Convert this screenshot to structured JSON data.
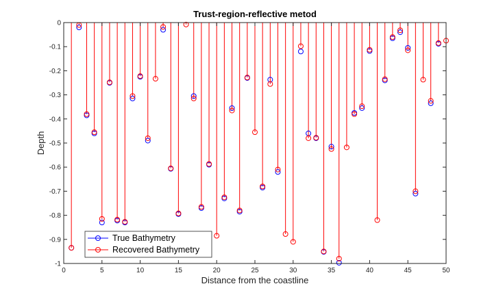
{
  "chart_data": {
    "type": "stem",
    "title": "Trust-region-reflective metod",
    "xlabel": "Distance from the coastline",
    "ylabel": "Depth",
    "xlim": [
      0,
      50
    ],
    "ylim": [
      -1,
      0
    ],
    "xticks": [
      0,
      5,
      10,
      15,
      20,
      25,
      30,
      35,
      40,
      45,
      50
    ],
    "yticks": [
      0,
      -0.1,
      -0.2,
      -0.3,
      -0.4,
      -0.5,
      -0.6,
      -0.7,
      -0.8,
      -0.9,
      -1
    ],
    "ytick_labels": [
      "0",
      "-0.1",
      "-0.2",
      "-0.3",
      "-0.4",
      "-0.5",
      "-0.6",
      "-0.7",
      "-0.8",
      "-0.9",
      "-1"
    ],
    "grid": false,
    "legend_position": "bottom-left",
    "x": [
      1,
      2,
      3,
      4,
      5,
      6,
      7,
      8,
      9,
      10,
      11,
      12,
      13,
      14,
      15,
      16,
      17,
      18,
      19,
      20,
      21,
      22,
      23,
      24,
      25,
      26,
      27,
      28,
      29,
      30,
      31,
      32,
      33,
      34,
      35,
      36,
      37,
      38,
      39,
      40,
      41,
      42,
      43,
      44,
      45,
      46,
      47,
      48,
      49,
      50
    ],
    "series": [
      {
        "name": "True Bathymetry",
        "color": "#0000ff",
        "marker": "circle",
        "stems": false,
        "values": [
          -0.935,
          -0.02,
          -0.385,
          -0.46,
          -0.83,
          -0.25,
          -0.822,
          -0.83,
          -0.315,
          -0.225,
          -0.49,
          null,
          -0.03,
          -0.607,
          -0.795,
          null,
          -0.305,
          -0.77,
          -0.59,
          null,
          -0.73,
          -0.355,
          -0.785,
          -0.23,
          null,
          -0.685,
          -0.237,
          -0.62,
          null,
          null,
          -0.12,
          -0.46,
          -0.48,
          -0.952,
          -0.515,
          -0.997,
          null,
          -0.375,
          -0.355,
          -0.118,
          null,
          -0.24,
          -0.065,
          -0.04,
          -0.105,
          -0.71,
          null,
          -0.335,
          -0.088,
          null
        ]
      },
      {
        "name": "Recovered Bathymetry",
        "color": "#ff0000",
        "marker": "circle",
        "stems": true,
        "values": [
          -0.935,
          -0.01,
          -0.38,
          -0.455,
          -0.815,
          -0.248,
          -0.818,
          -0.827,
          -0.305,
          -0.222,
          -0.48,
          -0.233,
          -0.018,
          -0.605,
          -0.792,
          -0.008,
          -0.315,
          -0.765,
          -0.587,
          -0.885,
          -0.725,
          -0.365,
          -0.78,
          -0.228,
          -0.455,
          -0.68,
          -0.255,
          -0.61,
          -0.878,
          -0.91,
          -0.098,
          -0.48,
          -0.478,
          -0.95,
          -0.525,
          -0.98,
          -0.518,
          -0.38,
          -0.347,
          -0.113,
          -0.82,
          -0.235,
          -0.06,
          -0.032,
          -0.115,
          -0.7,
          -0.237,
          -0.325,
          -0.085,
          -0.075
        ]
      }
    ]
  }
}
